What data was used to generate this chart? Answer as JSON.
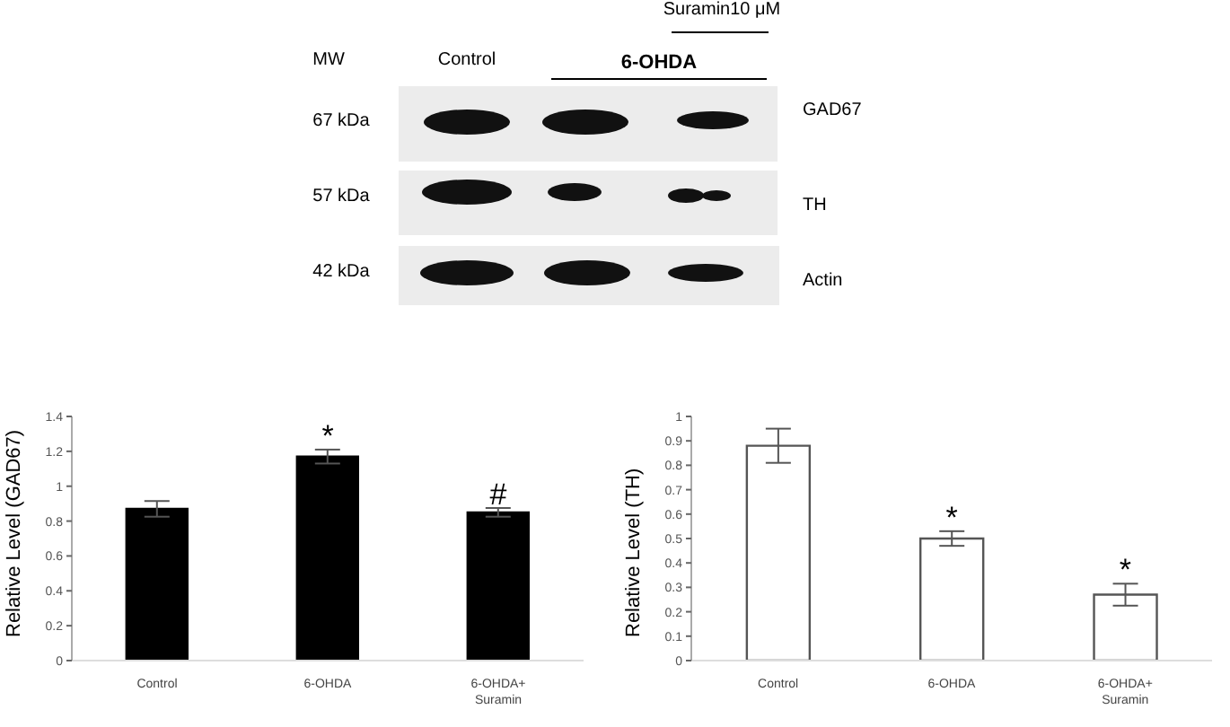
{
  "chart_data": [
    {
      "type": "other",
      "annotations": [
        "MW",
        "Control",
        "6-OHDA",
        "Suramin10 μM",
        "67 kDa",
        "57 kDa",
        "42 kDa",
        "GAD67",
        "TH",
        "Actin"
      ]
    },
    {
      "type": "bar",
      "ylabel": "Relative Level (GAD67)",
      "categories": [
        "Control",
        "6-OHDA",
        "6-OHDA+ Suramin"
      ],
      "values": [
        0.87,
        1.17,
        0.85
      ],
      "errors": [
        0.045,
        0.04,
        0.025
      ],
      "color": "#000000",
      "ylim": [
        0,
        1.4
      ],
      "yticks": [
        0,
        0.2,
        0.4,
        0.6,
        0.8,
        1,
        1.2,
        1.4
      ],
      "grid": false,
      "legend": false,
      "annotations": [
        {
          "text": "*",
          "x": "6-OHDA",
          "y": 1.21
        },
        {
          "text": "#",
          "x": "6-OHDA+ Suramin",
          "y": 0.875
        }
      ]
    },
    {
      "type": "bar",
      "ylabel": "Relative Level (TH)",
      "categories": [
        "Control",
        "6-OHDA",
        "6-OHDA+ Suramin"
      ],
      "values": [
        0.88,
        0.5,
        0.27
      ],
      "errors": [
        0.07,
        0.03,
        0.045
      ],
      "color": "#ffffff",
      "ylim": [
        0,
        1
      ],
      "yticks": [
        0,
        0.1,
        0.2,
        0.3,
        0.4,
        0.5,
        0.6,
        0.7,
        0.8,
        0.9,
        1
      ],
      "grid": false,
      "legend": false,
      "annotations": [
        {
          "text": "*",
          "x": "6-OHDA",
          "y": 0.53
        },
        {
          "text": "*",
          "x": "6-OHDA+ Suramin",
          "y": 0.315
        }
      ]
    }
  ]
}
